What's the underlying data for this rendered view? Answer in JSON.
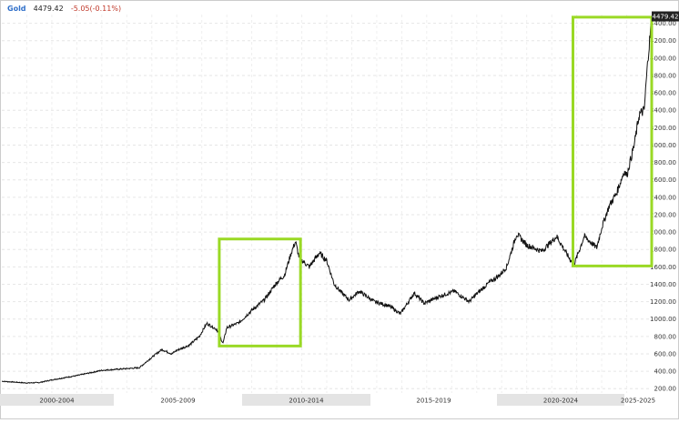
{
  "header": {
    "symbol": "Gold",
    "price": "4479.42",
    "change": "-5.05",
    "change_pct": "(-0.11%)"
  },
  "chart_data": {
    "type": "line",
    "title": "",
    "xlabel": "",
    "ylabel": "",
    "x_range": [
      2000,
      2026
    ],
    "ylim": [
      150,
      4500
    ],
    "grid": true,
    "y_ticks": [
      200,
      400,
      600,
      800,
      1000,
      1200,
      1400,
      1600,
      1800,
      2000,
      2200,
      2400,
      2600,
      2800,
      3000,
      3200,
      3400,
      3600,
      3800,
      4000,
      4200,
      4400
    ],
    "y_tick_labels": [
      "200.00",
      "400.00",
      "600.00",
      "800.00",
      "1000.00",
      "1200.00",
      "1400.00",
      "1600.00",
      "1800.00",
      "2000.00",
      "2200.00",
      "2400.00",
      "2600.00",
      "2800.00",
      "3000.00",
      "3200.00",
      "3400.00",
      "3600.00",
      "3800.00",
      "4000.00",
      "4200.00",
      "4400.00"
    ],
    "x_bands": [
      {
        "label": "2000-2004",
        "shaded": true
      },
      {
        "label": "2005-2009",
        "shaded": false
      },
      {
        "label": "2010-2014",
        "shaded": true
      },
      {
        "label": "2015-2019",
        "shaded": false
      },
      {
        "label": "2020-2024",
        "shaded": true
      },
      {
        "label": "2025-2025",
        "shaded": false
      }
    ],
    "last_price_label": "4479.42",
    "series": [
      {
        "color": "#111111",
        "x": [
          2000.0,
          2001.0,
          2001.5,
          2002.0,
          2003.0,
          2004.0,
          2005.0,
          2005.5,
          2006.0,
          2006.4,
          2006.8,
          2007.0,
          2007.5,
          2007.9,
          2008.2,
          2008.6,
          2008.85,
          2009.0,
          2009.5,
          2010.0,
          2010.5,
          2011.0,
          2011.3,
          2011.6,
          2011.75,
          2011.9,
          2012.3,
          2012.7,
          2013.0,
          2013.3,
          2013.6,
          2013.9,
          2014.3,
          2014.9,
          2015.5,
          2015.95,
          2016.5,
          2016.9,
          2017.5,
          2018.1,
          2018.7,
          2019.0,
          2019.5,
          2019.9,
          2020.2,
          2020.6,
          2021.0,
          2021.6,
          2022.2,
          2022.7,
          2022.9,
          2023.3,
          2023.8,
          2024.0,
          2024.3,
          2024.6,
          2024.9,
          2025.0,
          2025.3,
          2025.5,
          2025.7,
          2025.85,
          2025.95,
          2026.0
        ],
        "y": [
          285,
          265,
          270,
          300,
          350,
          410,
          430,
          440,
          560,
          650,
          600,
          640,
          700,
          800,
          950,
          880,
          720,
          900,
          960,
          1100,
          1220,
          1420,
          1500,
          1780,
          1890,
          1700,
          1600,
          1760,
          1670,
          1400,
          1300,
          1220,
          1320,
          1200,
          1150,
          1060,
          1300,
          1180,
          1260,
          1320,
          1200,
          1290,
          1420,
          1500,
          1600,
          1980,
          1850,
          1780,
          1950,
          1700,
          1630,
          1950,
          1820,
          2050,
          2300,
          2450,
          2700,
          2650,
          3000,
          3350,
          3400,
          4000,
          4300,
          4479
        ]
      }
    ],
    "highlight_boxes": [
      {
        "x_range": [
          2008.7,
          2011.95
        ],
        "y_range": [
          690,
          1920
        ],
        "color": "#9ad925"
      },
      {
        "x_range": [
          2022.85,
          2026.0
        ],
        "y_range": [
          1610,
          4470
        ],
        "color": "#9ad925"
      }
    ]
  }
}
